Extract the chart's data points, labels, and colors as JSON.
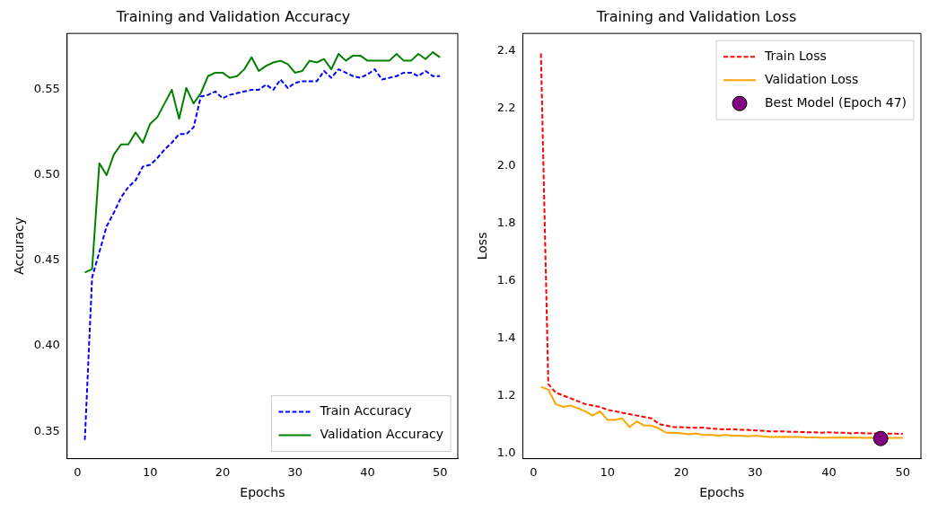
{
  "chart_data": [
    {
      "type": "line",
      "title": "Training and Validation Accuracy",
      "xlabel": "Epochs",
      "ylabel": "Accuracy",
      "x": [
        1,
        2,
        3,
        4,
        5,
        6,
        7,
        8,
        9,
        10,
        11,
        12,
        13,
        14,
        15,
        16,
        17,
        18,
        19,
        20,
        21,
        22,
        23,
        24,
        25,
        26,
        27,
        28,
        29,
        30,
        31,
        32,
        33,
        34,
        35,
        36,
        37,
        38,
        39,
        40,
        41,
        42,
        43,
        44,
        45,
        46,
        47,
        48,
        49,
        50
      ],
      "xlim": [
        -1.45,
        52.45
      ],
      "xticks": [
        0,
        10,
        20,
        30,
        40,
        50
      ],
      "ylim": [
        0.334,
        0.583
      ],
      "yticks": [
        0.35,
        {
          "value": 0.4,
          "label": "0.40"
        },
        0.45,
        {
          "value": 0.5,
          "label": "0.50"
        },
        0.55
      ],
      "grid": false,
      "legend": "bottom right",
      "marker": "none",
      "series": [
        {
          "name": "Train Accuracy",
          "color": "#0000ff",
          "line_style": "dashed",
          "values": [
            0.345,
            0.44,
            0.455,
            0.47,
            0.478,
            0.487,
            0.493,
            0.497,
            0.505,
            0.506,
            0.51,
            0.515,
            0.519,
            0.524,
            0.524,
            0.528,
            0.546,
            0.547,
            0.549,
            0.545,
            0.547,
            0.548,
            0.549,
            0.55,
            0.55,
            0.553,
            0.55,
            0.556,
            0.551,
            0.554,
            0.555,
            0.555,
            0.555,
            0.561,
            0.557,
            0.562,
            0.56,
            0.558,
            0.557,
            0.559,
            0.562,
            0.556,
            0.557,
            0.558,
            0.56,
            0.56,
            0.558,
            0.561,
            0.558,
            0.558
          ]
        },
        {
          "name": "Validation Accuracy",
          "color": "#008000",
          "line_style": "solid",
          "values": [
            0.443,
            0.445,
            0.507,
            0.5,
            0.512,
            0.518,
            0.518,
            0.525,
            0.519,
            0.53,
            0.534,
            0.542,
            0.55,
            0.533,
            0.551,
            0.542,
            0.548,
            0.558,
            0.56,
            0.56,
            0.557,
            0.558,
            0.562,
            0.569,
            0.561,
            0.564,
            0.566,
            0.567,
            0.565,
            0.56,
            0.561,
            0.567,
            0.566,
            0.568,
            0.562,
            0.571,
            0.567,
            0.57,
            0.57,
            0.567,
            0.567,
            0.567,
            0.567,
            0.571,
            0.567,
            0.567,
            0.571,
            0.568,
            0.572,
            0.569
          ]
        }
      ]
    },
    {
      "type": "line",
      "title": "Training and Validation Loss",
      "xlabel": "Epochs",
      "ylabel": "Loss",
      "x": [
        1,
        2,
        3,
        4,
        5,
        6,
        7,
        8,
        9,
        10,
        11,
        12,
        13,
        14,
        15,
        16,
        17,
        18,
        19,
        20,
        21,
        22,
        23,
        24,
        25,
        26,
        27,
        28,
        29,
        30,
        31,
        32,
        33,
        34,
        35,
        36,
        37,
        38,
        39,
        40,
        41,
        42,
        43,
        44,
        45,
        46,
        47,
        48,
        49,
        50
      ],
      "xlim": [
        -1.45,
        52.45
      ],
      "xticks": [
        0,
        10,
        20,
        30,
        40,
        50
      ],
      "ylim": [
        0.98,
        2.46
      ],
      "yticks": [
        {
          "value": 1,
          "label": "1.0"
        },
        1.2,
        1.4,
        1.6,
        1.8,
        {
          "value": 2,
          "label": "2.0"
        },
        2.2,
        2.4
      ],
      "grid": false,
      "legend": "top right",
      "marker": "none",
      "series": [
        {
          "name": "Train Loss",
          "color": "#ff0000",
          "line_style": "dashed",
          "values": [
            2.39,
            1.24,
            1.21,
            1.2,
            1.19,
            1.18,
            1.17,
            1.165,
            1.16,
            1.15,
            1.145,
            1.14,
            1.135,
            1.13,
            1.125,
            1.12,
            1.1,
            1.095,
            1.09,
            1.09,
            1.088,
            1.087,
            1.088,
            1.085,
            1.083,
            1.082,
            1.083,
            1.08,
            1.08,
            1.078,
            1.077,
            1.075,
            1.075,
            1.075,
            1.073,
            1.073,
            1.072,
            1.072,
            1.07,
            1.072,
            1.07,
            1.07,
            1.068,
            1.07,
            1.068,
            1.068,
            1.068,
            1.067,
            1.067,
            1.066
          ]
        },
        {
          "name": "Validation Loss",
          "color": "#ffa500",
          "line_style": "solid",
          "values": [
            1.23,
            1.22,
            1.17,
            1.16,
            1.165,
            1.155,
            1.145,
            1.13,
            1.145,
            1.115,
            1.115,
            1.12,
            1.09,
            1.11,
            1.095,
            1.095,
            1.085,
            1.07,
            1.07,
            1.068,
            1.065,
            1.068,
            1.062,
            1.063,
            1.06,
            1.062,
            1.06,
            1.06,
            1.058,
            1.06,
            1.058,
            1.055,
            1.055,
            1.056,
            1.055,
            1.055,
            1.054,
            1.054,
            1.053,
            1.053,
            1.053,
            1.054,
            1.053,
            1.053,
            1.052,
            1.053,
            1.05,
            1.052,
            1.052,
            1.052
          ]
        },
        {
          "name": "Best Model (Epoch 47)",
          "type": "scatter",
          "marker": "circle",
          "color": "#800080",
          "x": [
            47
          ],
          "values": [
            1.05
          ]
        }
      ]
    }
  ]
}
